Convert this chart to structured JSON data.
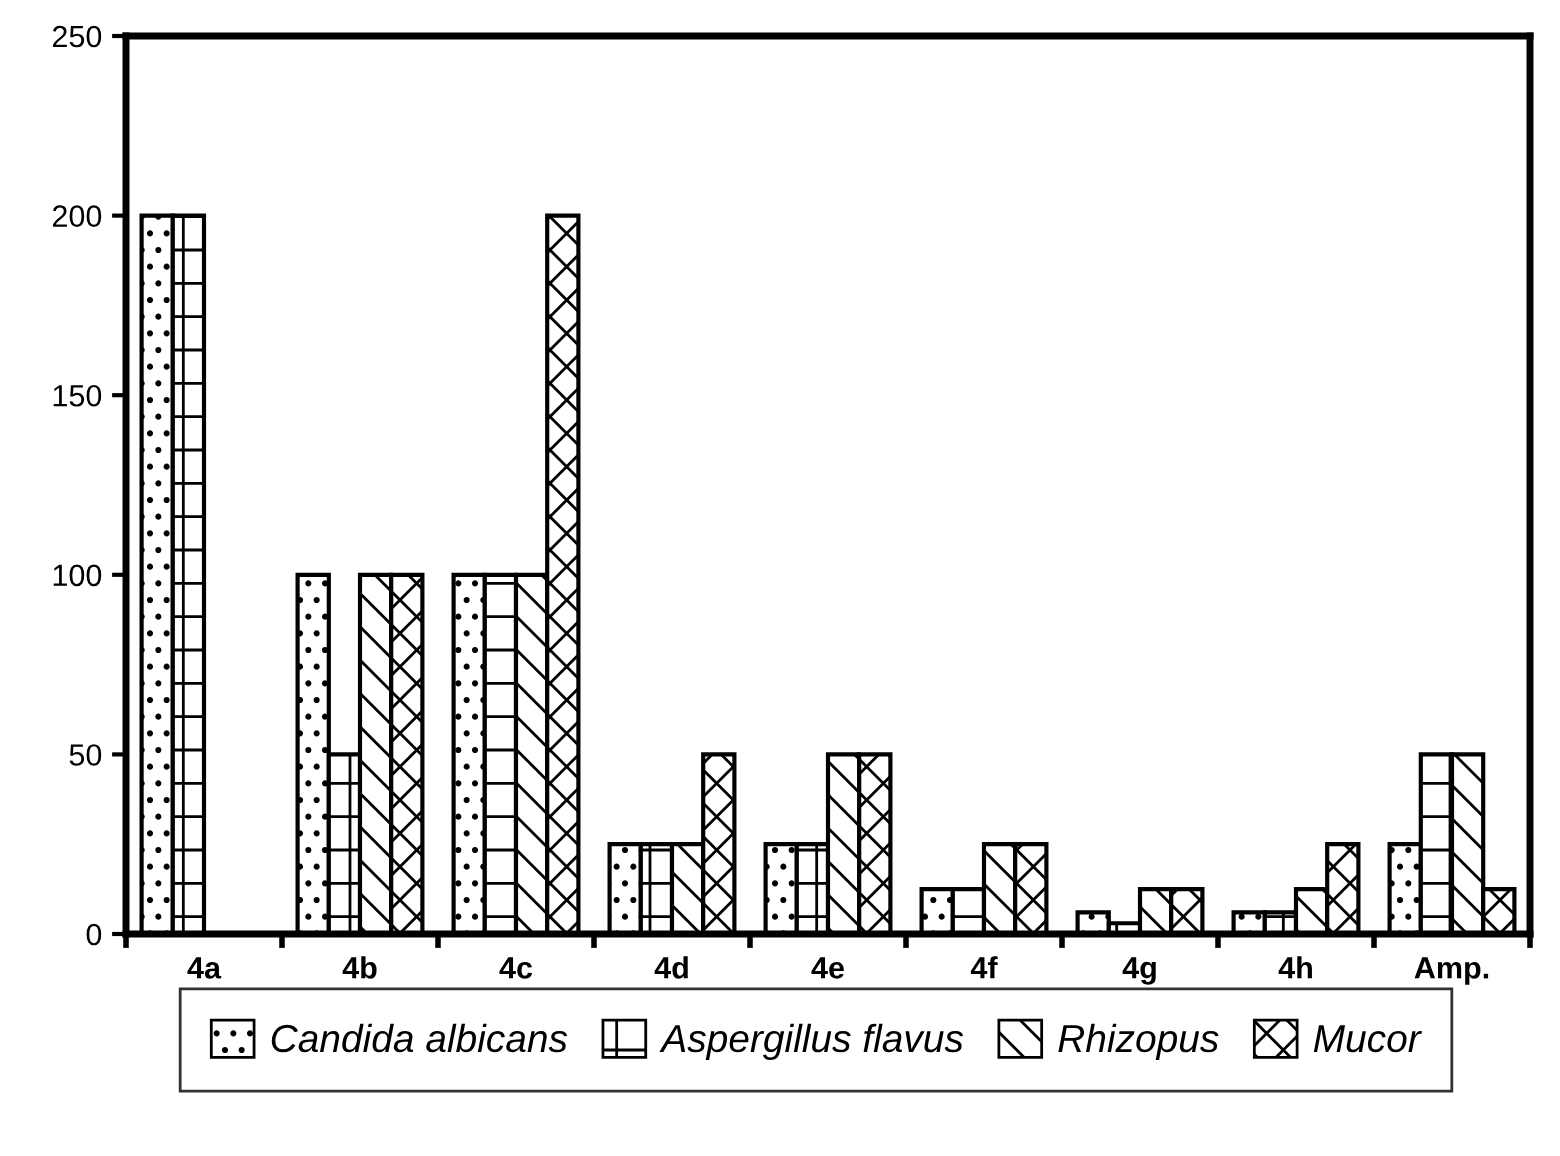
{
  "chart_data": {
    "type": "bar",
    "categories": [
      "4a",
      "4b",
      "4c",
      "4d",
      "4e",
      "4f",
      "4g",
      "4h",
      "Amp."
    ],
    "series": [
      {
        "name": "Candida albicans",
        "color": "#000000",
        "values": [
          200,
          100,
          100,
          25,
          25,
          12.5,
          6,
          6,
          25
        ]
      },
      {
        "name": "Aspergillus flavus",
        "color": "#000000",
        "values": [
          200,
          50,
          100,
          25,
          25,
          12.5,
          3,
          6,
          50
        ]
      },
      {
        "name": "Rhizopus",
        "color": "#000000",
        "values": [
          null,
          100,
          100,
          25,
          50,
          25,
          12.5,
          12.5,
          50
        ]
      },
      {
        "name": "Mucor",
        "color": "#000000",
        "values": [
          null,
          100,
          200,
          50,
          50,
          25,
          12.5,
          25,
          12.5
        ]
      }
    ],
    "ylim": [
      0,
      250
    ],
    "yticks": [
      0,
      50,
      100,
      150,
      200,
      250
    ],
    "grid": false,
    "legend": "bottom"
  }
}
